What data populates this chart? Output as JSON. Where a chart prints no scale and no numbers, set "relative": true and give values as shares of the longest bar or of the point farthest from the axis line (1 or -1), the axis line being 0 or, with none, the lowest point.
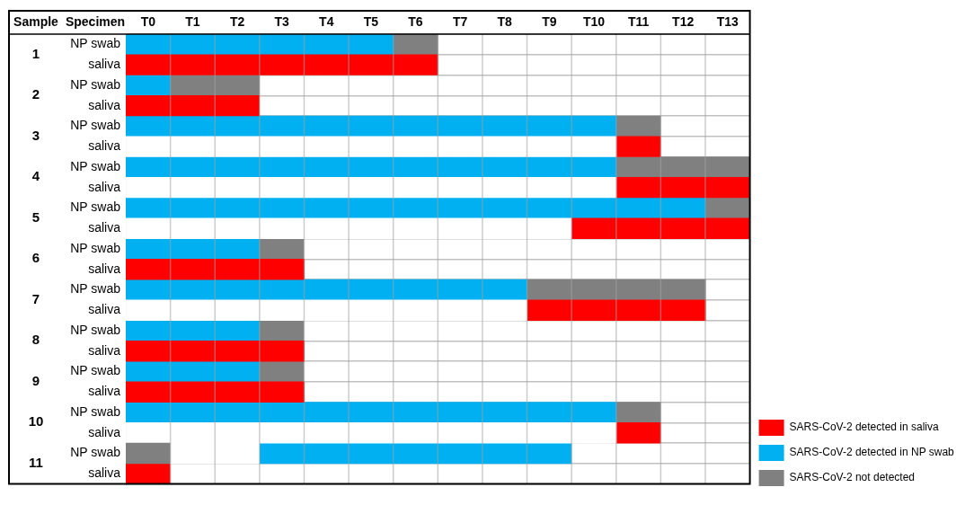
{
  "chart_data": {
    "type": "bar",
    "orientation": "horizontal",
    "relative": true,
    "stacked": true,
    "categories": [
      "NP swab",
      "saliva",
      "NP swab",
      "saliva",
      "NP swab",
      "saliva",
      "NP swab",
      "saliva",
      "NP swab",
      "saliva",
      "NP swab",
      "saliva",
      "NP swab",
      "saliva",
      "NP swab",
      "saliva",
      "NP swab",
      "saliva",
      "NP swab",
      "saliva",
      "NP swab",
      "saliva"
    ],
    "series": [
      {
        "color": "#808080",
        "values": [
          null,
          null,
          null,
          null,
          null,
          null,
          null,
          null,
          null,
          null,
          null,
          null,
          null,
          null,
          null,
          null,
          null,
          null,
          null,
          null,
          0.071,
          null
        ]
      },
      {
        "color": "#ffffff",
        "values": [
          null,
          null,
          null,
          null,
          null,
          0.786,
          null,
          0.786,
          null,
          0.714,
          null,
          null,
          null,
          0.643,
          null,
          null,
          null,
          null,
          null,
          0.786,
          0.143,
          null
        ]
      },
      {
        "name": "SARS-CoV-2 detected in saliva",
        "color": "#ff0000",
        "values": [
          null,
          0.5,
          null,
          0.214,
          null,
          0.071,
          null,
          0.214,
          null,
          0.286,
          null,
          0.286,
          null,
          0.286,
          null,
          0.286,
          null,
          0.286,
          null,
          0.071,
          null,
          0.071
        ]
      },
      {
        "name": "SARS-CoV-2 detected in NP swab",
        "color": "#00b0f0",
        "values": [
          0.429,
          null,
          0.071,
          null,
          0.786,
          null,
          0.786,
          null,
          0.929,
          null,
          0.214,
          null,
          0.643,
          null,
          0.214,
          null,
          0.214,
          null,
          0.786,
          null,
          0.5,
          null
        ]
      },
      {
        "name": "SARS-CoV-2 not detected",
        "color": "#808080",
        "values": [
          0.071,
          null,
          0.143,
          null,
          0.071,
          null,
          0.214,
          null,
          0.071,
          null,
          0.071,
          null,
          0.286,
          null,
          0.071,
          null,
          0.071,
          null,
          0.071,
          null,
          null,
          null
        ]
      }
    ],
    "annotations": [
      "Sample",
      "Specimen",
      "T0",
      "T1",
      "T2",
      "T3",
      "T4",
      "T5",
      "T6",
      "T7",
      "T8",
      "T9",
      "T10",
      "T11",
      "T12",
      "T13",
      "1",
      "2",
      "3",
      "4",
      "5",
      "6",
      "7",
      "8",
      "9",
      "10",
      "11"
    ],
    "grid": true,
    "legend": "bottom right"
  }
}
